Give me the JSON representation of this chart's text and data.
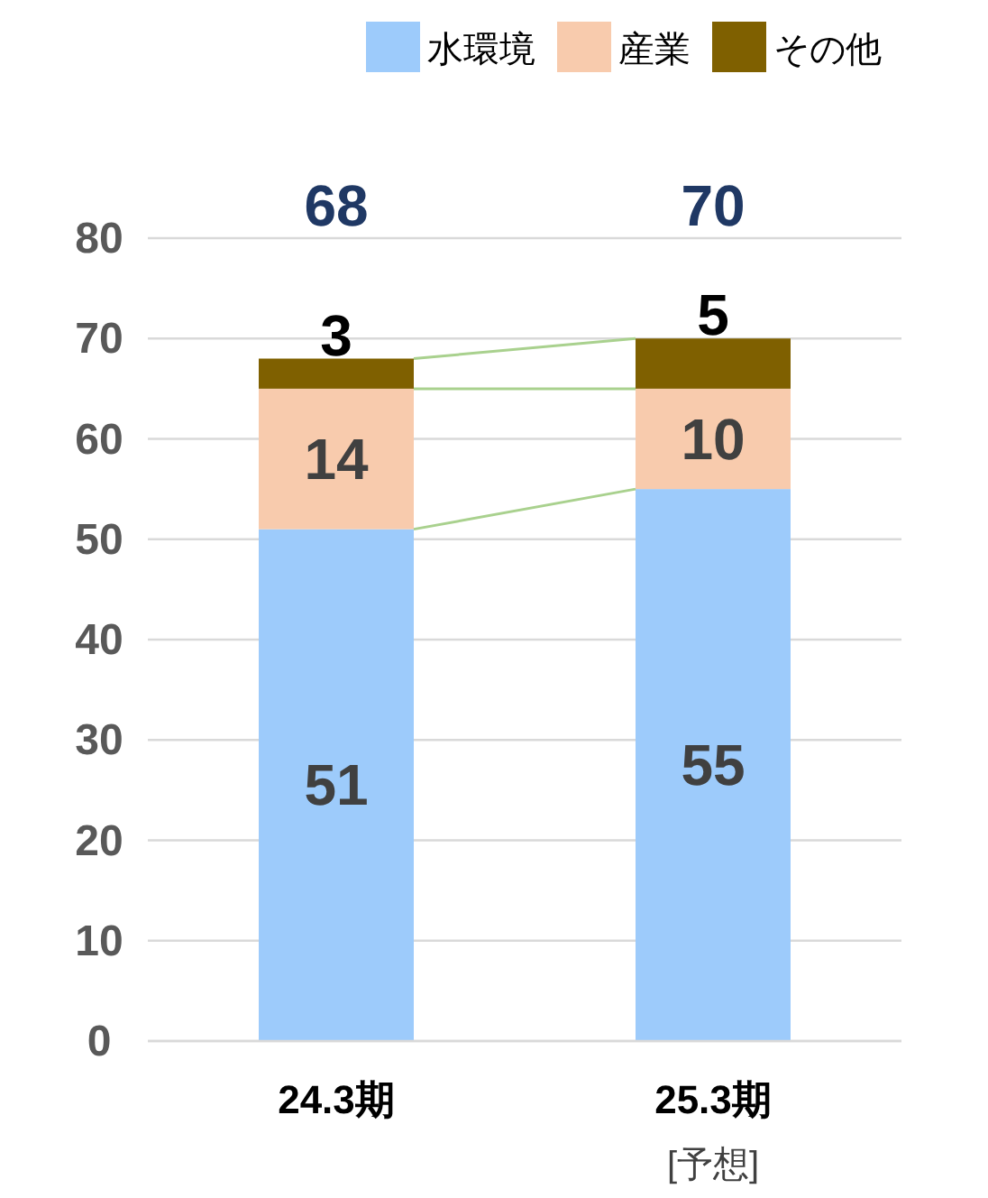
{
  "chart_data": {
    "type": "bar",
    "stacked": true,
    "categories": [
      "24.3期",
      "25.3期\n[予想]"
    ],
    "series": [
      {
        "name": "水環境",
        "color": "#9dcbfb",
        "values": [
          51,
          55
        ]
      },
      {
        "name": "産業",
        "color": "#f8cbad",
        "values": [
          14,
          10
        ]
      },
      {
        "name": "その他",
        "color": "#7f6000",
        "values": [
          3,
          5
        ]
      }
    ],
    "totals": [
      "68",
      "70"
    ],
    "data_labels": true,
    "ylim": [
      0,
      80
    ],
    "yticks": [
      0,
      10,
      20,
      30,
      40,
      50,
      60,
      70,
      80
    ],
    "grid": "y",
    "legend": "top right"
  }
}
